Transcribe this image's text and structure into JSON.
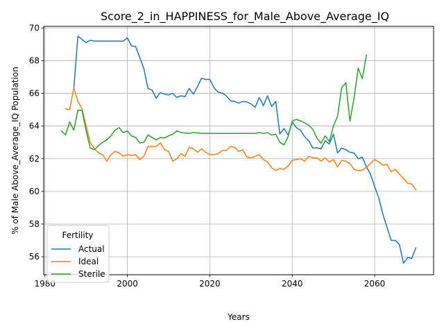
{
  "chart_data": {
    "type": "line",
    "title": "Score_2_in_HAPPINESS_for_Male_Above_Average_IQ",
    "xlabel": "Years",
    "ylabel": "% of Male Above_Average_IQ Population",
    "xlim": [
      1979.7,
      2074.3
    ],
    "ylim": [
      54.9,
      70.1
    ],
    "xticks": [
      1980,
      2000,
      2020,
      2040,
      2060
    ],
    "yticks": [
      56,
      58,
      60,
      62,
      64,
      66,
      68,
      70
    ],
    "grid": true,
    "legend": {
      "title": "Fertility",
      "placement": "lower left"
    },
    "series": [
      {
        "name": "Actual",
        "color": "#1f77b4",
        "x": [
          1987,
          1988,
          1989,
          1990,
          1991,
          1992,
          1993,
          1994,
          1995,
          1996,
          1997,
          1998,
          1999,
          2000,
          2001,
          2002,
          2003,
          2004,
          2005,
          2006,
          2007,
          2008,
          2009,
          2010,
          2011,
          2012,
          2013,
          2014,
          2015,
          2016,
          2017,
          2018,
          2019,
          2020,
          2021,
          2022,
          2023,
          2024,
          2025,
          2026,
          2027,
          2028,
          2029,
          2030,
          2031,
          2032,
          2033,
          2034,
          2035,
          2036,
          2037,
          2038,
          2039,
          2040,
          2041,
          2042,
          2043,
          2044,
          2045,
          2046,
          2047,
          2048,
          2049,
          2050,
          2051,
          2052,
          2053,
          2054,
          2055,
          2056,
          2057,
          2058,
          2059,
          2060,
          2061,
          2062,
          2063,
          2064,
          2065,
          2066,
          2067,
          2068,
          2069,
          2070
        ],
        "values": [
          66.3,
          69.5,
          69.3,
          69.1,
          69.25,
          69.2,
          69.2,
          69.2,
          69.2,
          69.2,
          69.2,
          69.2,
          69.2,
          69.4,
          68.9,
          68.87,
          68.2,
          67.5,
          66.3,
          66.2,
          65.7,
          66.05,
          65.95,
          65.9,
          66.0,
          65.75,
          65.85,
          65.8,
          66.3,
          65.95,
          66.4,
          66.93,
          66.85,
          66.85,
          66.35,
          66.07,
          66.02,
          65.85,
          65.55,
          65.5,
          65.4,
          65.5,
          65.47,
          65.35,
          65.15,
          65.75,
          65.25,
          65.85,
          65.2,
          65.5,
          63.5,
          63.85,
          63.45,
          64.25,
          63.9,
          63.75,
          63.35,
          63.1,
          62.65,
          62.67,
          62.6,
          63.1,
          62.9,
          63.5,
          62.35,
          62.65,
          62.55,
          62.4,
          62.35,
          62.0,
          62.1,
          61.5,
          61.05,
          60.3,
          59.6,
          58.6,
          57.8,
          57.0,
          57.0,
          56.75,
          55.6,
          55.95,
          55.9,
          56.55
        ]
      },
      {
        "name": "Ideal",
        "color": "#ff7f0e",
        "x": [
          1985,
          1986,
          1987,
          1988,
          1989,
          1990,
          1991,
          1992,
          1993,
          1994,
          1995,
          1996,
          1997,
          1998,
          1999,
          2000,
          2001,
          2002,
          2003,
          2004,
          2005,
          2006,
          2007,
          2008,
          2009,
          2010,
          2011,
          2012,
          2013,
          2014,
          2015,
          2016,
          2017,
          2018,
          2019,
          2020,
          2021,
          2022,
          2023,
          2024,
          2025,
          2026,
          2027,
          2028,
          2029,
          2030,
          2031,
          2032,
          2033,
          2034,
          2035,
          2036,
          2037,
          2038,
          2039,
          2040,
          2041,
          2042,
          2043,
          2044,
          2045,
          2046,
          2047,
          2048,
          2049,
          2050,
          2051,
          2052,
          2053,
          2054,
          2055,
          2056,
          2057,
          2058,
          2059,
          2060,
          2061,
          2062,
          2063,
          2064,
          2065,
          2066,
          2067,
          2068,
          2069,
          2070
        ],
        "values": [
          65.05,
          65.0,
          66.35,
          65.5,
          65.05,
          64.0,
          63.0,
          62.6,
          62.35,
          62.25,
          61.85,
          62.25,
          62.45,
          62.35,
          62.15,
          62.25,
          62.2,
          62.25,
          61.95,
          62.15,
          62.75,
          62.75,
          62.75,
          62.97,
          62.55,
          62.45,
          61.85,
          62.0,
          62.3,
          62.15,
          62.7,
          62.6,
          62.4,
          62.6,
          62.4,
          62.25,
          62.25,
          62.3,
          62.5,
          62.5,
          62.75,
          62.7,
          62.45,
          62.55,
          62.1,
          62.05,
          62.15,
          62.25,
          61.95,
          61.8,
          61.45,
          61.27,
          61.4,
          61.35,
          61.55,
          61.9,
          61.95,
          62.0,
          61.85,
          62.15,
          62.05,
          62.05,
          61.85,
          62.05,
          61.8,
          61.95,
          61.5,
          61.9,
          61.85,
          61.7,
          61.35,
          61.27,
          61.3,
          61.47,
          61.72,
          61.95,
          61.8,
          61.6,
          61.65,
          61.2,
          61.35,
          61.05,
          60.8,
          60.5,
          60.45,
          60.1
        ]
      },
      {
        "name": "Sterile",
        "color": "#2ca02c",
        "x": [
          1984,
          1985,
          1986,
          1987,
          1988,
          1989,
          1990,
          1991,
          1992,
          1993,
          1994,
          1995,
          1996,
          1997,
          1998,
          1999,
          2000,
          2001,
          2002,
          2003,
          2004,
          2005,
          2006,
          2007,
          2008,
          2009,
          2010,
          2011,
          2012,
          2013,
          2014,
          2015,
          2016,
          2017,
          2018,
          2019,
          2020,
          2021,
          2022,
          2023,
          2024,
          2025,
          2026,
          2027,
          2028,
          2029,
          2030,
          2031,
          2032,
          2033,
          2034,
          2035,
          2036,
          2037,
          2038,
          2039,
          2040,
          2041,
          2042,
          2043,
          2044,
          2045,
          2046,
          2047,
          2048,
          2049,
          2050,
          2051,
          2052,
          2053,
          2054,
          2055,
          2056,
          2057,
          2058
        ],
        "values": [
          63.7,
          63.45,
          64.25,
          63.75,
          64.97,
          64.95,
          63.7,
          62.65,
          62.55,
          62.8,
          63.0,
          63.15,
          63.4,
          63.75,
          63.9,
          63.6,
          63.7,
          63.4,
          63.3,
          62.97,
          63.0,
          63.45,
          63.3,
          63.15,
          63.3,
          63.27,
          63.4,
          63.5,
          63.7,
          63.6,
          63.57,
          63.55,
          63.6,
          63.58,
          63.55,
          63.55,
          63.55,
          63.55,
          63.55,
          63.55,
          63.55,
          63.55,
          63.55,
          63.55,
          63.55,
          63.55,
          63.55,
          63.55,
          63.6,
          63.55,
          63.6,
          63.45,
          63.5,
          63.0,
          62.85,
          63.35,
          64.3,
          64.4,
          64.32,
          64.2,
          64.05,
          63.8,
          63.25,
          62.95,
          63.4,
          63.05,
          64.0,
          64.6,
          66.35,
          66.65,
          64.3,
          65.7,
          67.55,
          66.9,
          68.35
        ]
      }
    ]
  }
}
